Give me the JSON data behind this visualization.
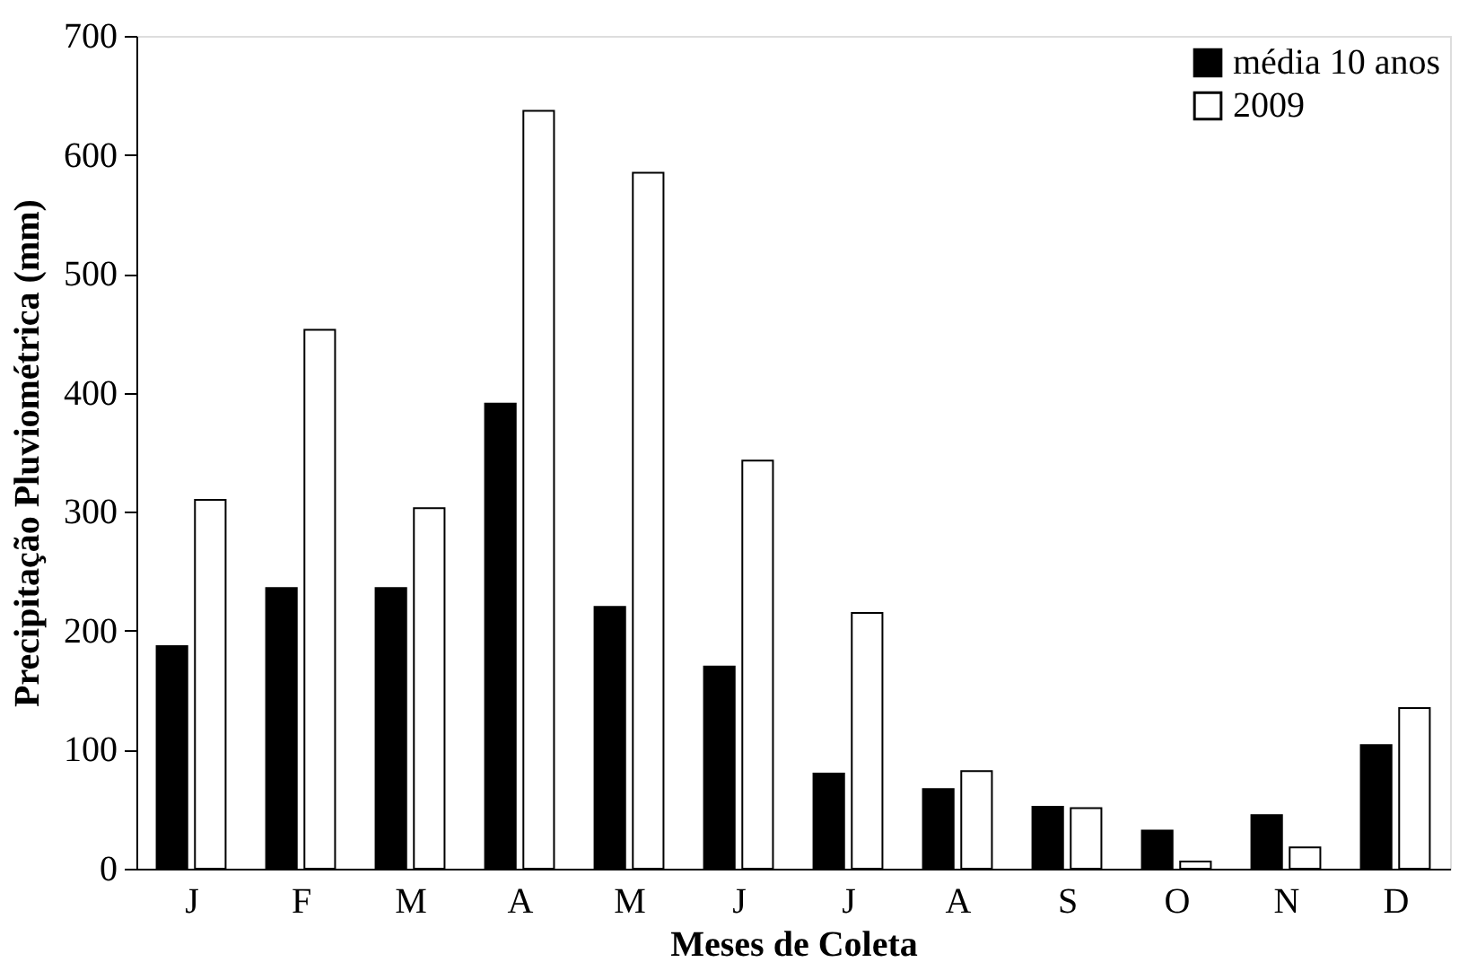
{
  "chart_data": {
    "type": "bar",
    "xlabel": "Meses de Coleta",
    "ylabel": "Precipitação Pluviométrica (mm)",
    "categories": [
      "J",
      "F",
      "M",
      "A",
      "M",
      "J",
      "J",
      "A",
      "S",
      "O",
      "N",
      "D"
    ],
    "series": [
      {
        "name": "média 10 anos",
        "color": "#000000",
        "values": [
          187,
          236,
          236,
          391,
          220,
          170,
          80,
          67,
          52,
          32,
          45,
          104
        ]
      },
      {
        "name": "2009",
        "color": "#ffffff",
        "values": [
          310,
          453,
          303,
          637,
          585,
          343,
          215,
          82,
          51,
          6,
          18,
          135
        ]
      }
    ],
    "ylim": [
      0,
      700
    ],
    "yticks": [
      0,
      100,
      200,
      300,
      400,
      500,
      600,
      700
    ],
    "grid": false,
    "legend": "top right"
  }
}
